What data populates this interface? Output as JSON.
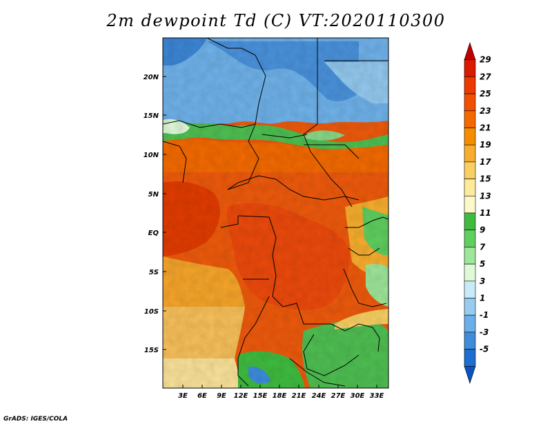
{
  "title": "2m dewpoint Td (C) VT:2020110300",
  "footer": "GrADS: IGES/COLA",
  "map": {
    "lat_ticks": [
      "20N",
      "15N",
      "10N",
      "5N",
      "EQ",
      "5S",
      "10S",
      "15S"
    ],
    "lon_ticks": [
      "3E",
      "6E",
      "9E",
      "12E",
      "15E",
      "18E",
      "21E",
      "24E",
      "27E",
      "30E",
      "33E"
    ]
  },
  "colorbar": {
    "labels": [
      "29",
      "27",
      "25",
      "23",
      "21",
      "19",
      "17",
      "15",
      "13",
      "11",
      "9",
      "7",
      "5",
      "3",
      "1",
      "-1",
      "-3",
      "-5"
    ],
    "colors": [
      "#c00000",
      "#dc1a00",
      "#ec3a00",
      "#f25000",
      "#f46a00",
      "#f58d00",
      "#f7ae2e",
      "#f9cf63",
      "#fbeb9a",
      "#fdf8c8",
      "#3fbc3f",
      "#5fcf5f",
      "#9ee69a",
      "#dffad8",
      "#c7ebf7",
      "#98ccef",
      "#6aafe7",
      "#3d8ddb",
      "#1e6ecf",
      "#0a52c0"
    ]
  }
}
